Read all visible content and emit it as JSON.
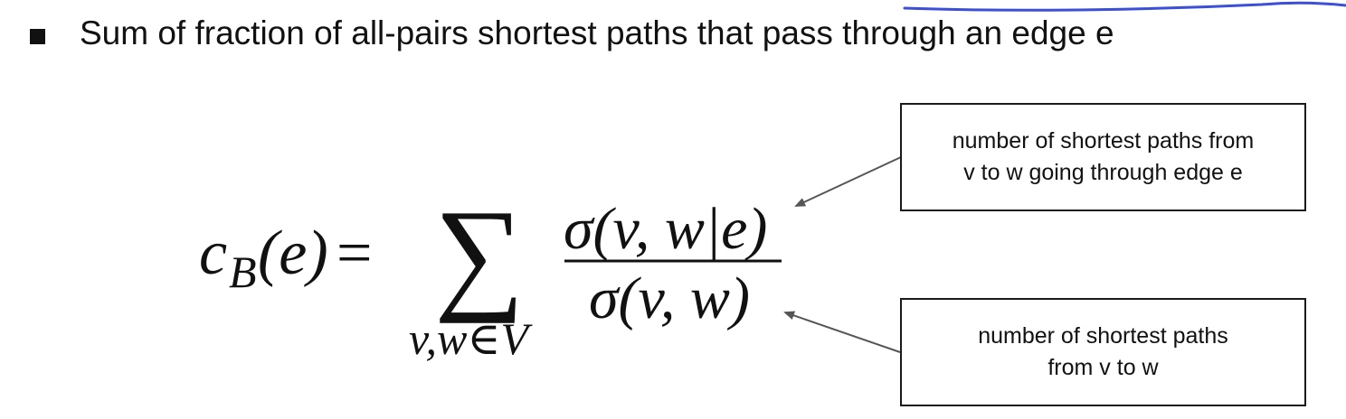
{
  "bullet": {
    "icon": "square-bullet-icon",
    "text": "Sum of fraction of all-pairs shortest paths that pass through an edge e"
  },
  "formula": {
    "lhs_symbol": "c",
    "lhs_subscript": "B",
    "lhs_argument": "(e)",
    "equals": "=",
    "sum_symbol": "∑",
    "sum_subscript": "v,w∈V",
    "numerator": "σ(v, w|e)",
    "denominator": "σ(v, w)"
  },
  "annotations": {
    "numerator_note_line1": "number of shortest paths from",
    "numerator_note_line2": "v to w going through edge e",
    "denominator_note_line1": "number of shortest paths",
    "denominator_note_line2": "from v to w"
  },
  "colors": {
    "ink": "#111111",
    "pen_stroke": "#3b4fd8",
    "arrow": "#555555"
  }
}
